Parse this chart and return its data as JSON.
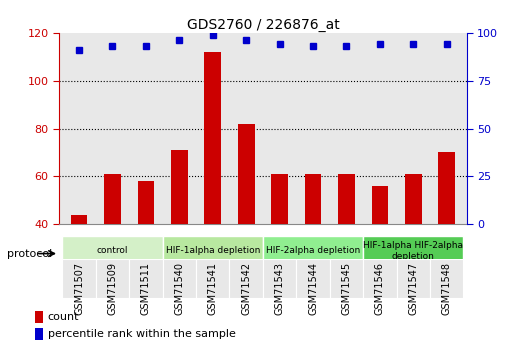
{
  "title": "GDS2760 / 226876_at",
  "samples": [
    "GSM71507",
    "GSM71509",
    "GSM71511",
    "GSM71540",
    "GSM71541",
    "GSM71542",
    "GSM71543",
    "GSM71544",
    "GSM71545",
    "GSM71546",
    "GSM71547",
    "GSM71548"
  ],
  "counts": [
    44,
    61,
    58,
    71,
    112,
    82,
    61,
    61,
    61,
    56,
    61,
    70
  ],
  "percentiles": [
    91,
    93,
    93,
    96,
    99,
    96,
    94,
    93,
    93,
    94,
    94,
    94
  ],
  "ylim_left": [
    40,
    120
  ],
  "ylim_right": [
    0,
    100
  ],
  "yticks_left": [
    40,
    60,
    80,
    100,
    120
  ],
  "yticks_right": [
    0,
    25,
    50,
    75,
    100
  ],
  "bar_color": "#cc0000",
  "dot_color": "#0000cc",
  "plot_bg_color": "#e8e8e8",
  "fig_bg_color": "#ffffff",
  "protocol_groups": [
    {
      "label": "control",
      "start": 0,
      "end": 3,
      "color": "#d4f0c8"
    },
    {
      "label": "HIF-1alpha depletion",
      "start": 3,
      "end": 6,
      "color": "#b8e8a0"
    },
    {
      "label": "HIF-2alpha depletion",
      "start": 6,
      "end": 9,
      "color": "#90ee90"
    },
    {
      "label": "HIF-1alpha HIF-2alpha\ndepletion",
      "start": 9,
      "end": 12,
      "color": "#55cc55"
    }
  ],
  "legend_items": [
    {
      "label": "count",
      "color": "#cc0000"
    },
    {
      "label": "percentile rank within the sample",
      "color": "#0000cc"
    }
  ],
  "protocol_label": "protocol",
  "tick_color_left": "#cc0000",
  "tick_color_right": "#0000cc"
}
